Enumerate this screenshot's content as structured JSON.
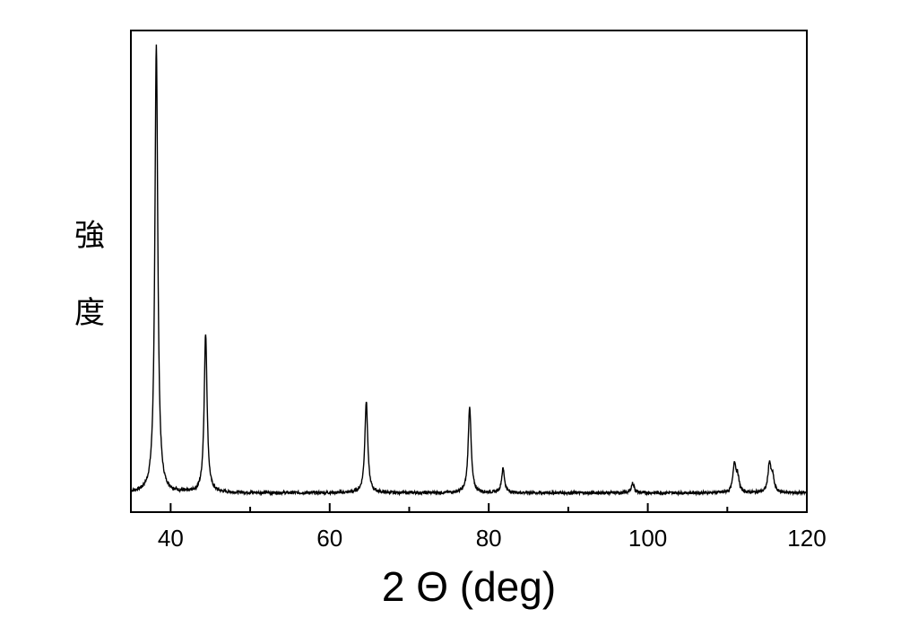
{
  "chart_data": {
    "type": "line",
    "title": "",
    "xlabel": "2 Θ (deg)",
    "ylabel": "強度",
    "xlim": [
      35,
      120
    ],
    "ylim": [
      0,
      1.0
    ],
    "grid": false,
    "x_ticks": [
      40,
      60,
      80,
      100,
      120
    ],
    "x_tick_labels": [
      "40",
      "60",
      "80",
      "100",
      "120"
    ],
    "y_ticks_shown": false,
    "baseline": 0.04,
    "peaks": [
      {
        "x": 38.2,
        "y": 0.97
      },
      {
        "x": 44.4,
        "y": 0.37
      },
      {
        "x": 64.6,
        "y": 0.23
      },
      {
        "x": 77.6,
        "y": 0.22
      },
      {
        "x": 81.8,
        "y": 0.09
      },
      {
        "x": 98.1,
        "y": 0.06
      },
      {
        "x": 110.9,
        "y": 0.1
      },
      {
        "x": 111.3,
        "y": 0.07
      },
      {
        "x": 115.3,
        "y": 0.1
      },
      {
        "x": 115.7,
        "y": 0.07
      }
    ],
    "series": [
      {
        "color": "#000000"
      }
    ]
  }
}
